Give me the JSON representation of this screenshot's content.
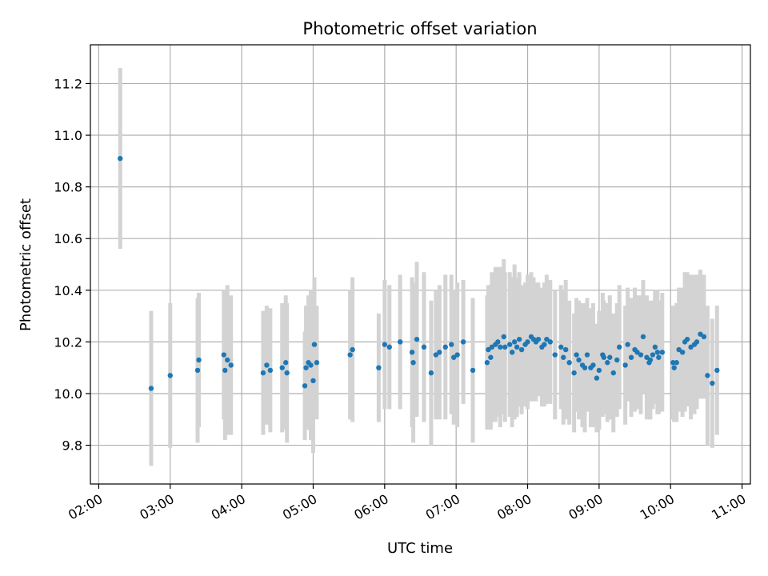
{
  "chart_data": {
    "type": "scatter",
    "title": "Photometric offset variation",
    "xlabel": "UTC time",
    "ylabel": "Photometric offset",
    "grid": true,
    "xlim": [
      "01:53",
      "11:07"
    ],
    "ylim": [
      9.65,
      11.35
    ],
    "x_ticks": [
      "02:00",
      "03:00",
      "04:00",
      "05:00",
      "06:00",
      "07:00",
      "08:00",
      "09:00",
      "10:00",
      "11:00"
    ],
    "y_ticks": [
      "9.8",
      "10.0",
      "10.2",
      "10.4",
      "10.6",
      "10.8",
      "11.0",
      "11.2"
    ],
    "colors": {
      "points": "#1f77b4",
      "error_bars": "#d3d3d3",
      "grid": "#b0b0b0"
    },
    "series": [
      {
        "marker": "point with vertical error bar",
        "x": [
          "02:18",
          "02:44",
          "03:00",
          "03:23",
          "03:24",
          "03:45",
          "03:46",
          "03:48",
          "03:51",
          "04:18",
          "04:21",
          "04:24",
          "04:34",
          "04:37",
          "04:38",
          "04:53",
          "04:54",
          "04:56",
          "04:58",
          "05:00",
          "05:01",
          "05:03",
          "05:31",
          "05:33",
          "05:55",
          "06:00",
          "06:04",
          "06:13",
          "06:23",
          "06:24",
          "06:27",
          "06:33",
          "06:39",
          "06:43",
          "06:46",
          "06:51",
          "06:56",
          "06:58",
          "07:01",
          "07:06",
          "07:14",
          "07:26",
          "07:27",
          "07:29",
          "07:30",
          "07:33",
          "07:35",
          "07:37",
          "07:40",
          "07:41",
          "07:45",
          "07:47",
          "07:49",
          "07:51",
          "07:53",
          "07:55",
          "07:58",
          "08:00",
          "08:03",
          "08:05",
          "08:07",
          "08:09",
          "08:12",
          "08:14",
          "08:16",
          "08:19",
          "08:23",
          "08:28",
          "08:30",
          "08:32",
          "08:35",
          "08:39",
          "08:41",
          "08:43",
          "08:46",
          "08:48",
          "08:50",
          "08:53",
          "08:55",
          "08:58",
          "09:00",
          "09:03",
          "09:04",
          "09:07",
          "09:09",
          "09:12",
          "09:15",
          "09:17",
          "09:22",
          "09:24",
          "09:27",
          "09:30",
          "09:32",
          "09:35",
          "09:37",
          "09:40",
          "09:42",
          "09:43",
          "09:45",
          "09:47",
          "09:49",
          "09:50",
          "09:53",
          "10:02",
          "10:03",
          "10:05",
          "10:07",
          "10:10",
          "10:12",
          "10:14",
          "10:17",
          "10:20",
          "10:22",
          "10:25",
          "10:28",
          "10:31",
          "10:35",
          "10:39"
        ],
        "y": [
          10.91,
          10.02,
          10.07,
          10.09,
          10.13,
          10.15,
          10.09,
          10.13,
          10.11,
          10.08,
          10.11,
          10.09,
          10.1,
          10.12,
          10.08,
          10.03,
          10.1,
          10.12,
          10.11,
          10.05,
          10.19,
          10.12,
          10.15,
          10.17,
          10.1,
          10.19,
          10.18,
          10.2,
          10.16,
          10.12,
          10.21,
          10.18,
          10.08,
          10.15,
          10.16,
          10.18,
          10.19,
          10.14,
          10.15,
          10.2,
          10.09,
          10.12,
          10.17,
          10.14,
          10.18,
          10.19,
          10.2,
          10.18,
          10.22,
          10.18,
          10.19,
          10.16,
          10.2,
          10.18,
          10.21,
          10.17,
          10.19,
          10.2,
          10.22,
          10.21,
          10.2,
          10.21,
          10.18,
          10.19,
          10.21,
          10.2,
          10.15,
          10.18,
          10.14,
          10.17,
          10.12,
          10.08,
          10.15,
          10.13,
          10.11,
          10.1,
          10.15,
          10.1,
          10.11,
          10.06,
          10.09,
          10.15,
          10.14,
          10.12,
          10.14,
          10.08,
          10.13,
          10.18,
          10.11,
          10.19,
          10.14,
          10.17,
          10.16,
          10.15,
          10.22,
          10.14,
          10.12,
          10.13,
          10.15,
          10.18,
          10.16,
          10.14,
          10.16,
          10.12,
          10.1,
          10.12,
          10.17,
          10.16,
          10.2,
          10.21,
          10.18,
          10.19,
          10.2,
          10.23,
          10.22,
          10.07,
          10.04,
          10.09
        ],
        "error": [
          0.35,
          0.3,
          0.28,
          0.28,
          0.26,
          0.25,
          0.27,
          0.29,
          0.27,
          0.24,
          0.23,
          0.24,
          0.25,
          0.26,
          0.27,
          0.21,
          0.24,
          0.26,
          0.29,
          0.28,
          0.26,
          0.22,
          0.25,
          0.28,
          0.21,
          0.25,
          0.24,
          0.26,
          0.29,
          0.31,
          0.3,
          0.29,
          0.28,
          0.25,
          0.26,
          0.28,
          0.27,
          0.26,
          0.28,
          0.24,
          0.28,
          0.26,
          0.25,
          0.28,
          0.29,
          0.3,
          0.29,
          0.31,
          0.3,
          0.29,
          0.28,
          0.29,
          0.3,
          0.27,
          0.26,
          0.25,
          0.24,
          0.26,
          0.25,
          0.24,
          0.23,
          0.22,
          0.23,
          0.24,
          0.25,
          0.24,
          0.25,
          0.24,
          0.26,
          0.27,
          0.24,
          0.23,
          0.22,
          0.23,
          0.24,
          0.25,
          0.22,
          0.23,
          0.24,
          0.21,
          0.23,
          0.24,
          0.22,
          0.23,
          0.24,
          0.23,
          0.22,
          0.24,
          0.23,
          0.22,
          0.23,
          0.24,
          0.22,
          0.23,
          0.22,
          0.24,
          0.22,
          0.23,
          0.21,
          0.22,
          0.24,
          0.22,
          0.23,
          0.22,
          0.21,
          0.23,
          0.24,
          0.25,
          0.27,
          0.26,
          0.28,
          0.27,
          0.26,
          0.25,
          0.24,
          0.27,
          0.25,
          0.25
        ]
      }
    ]
  }
}
